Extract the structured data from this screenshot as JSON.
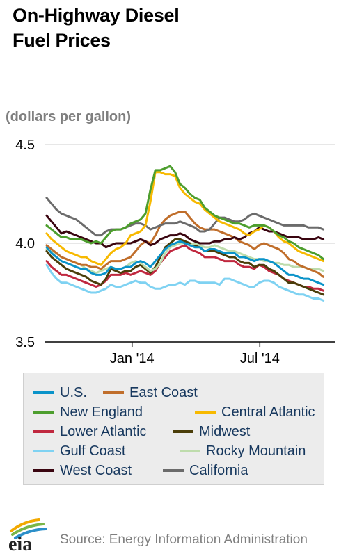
{
  "header": {
    "title_line1": "On-Highway Diesel",
    "title_line2": "Fuel Prices"
  },
  "chart_data": {
    "type": "line",
    "title": "On-Highway Diesel Fuel Prices",
    "ylabel": "(dollars per gallon)",
    "ylim": [
      3.5,
      4.5
    ],
    "yticks": [
      "4.5",
      "4.0",
      "3.5"
    ],
    "xticks": [
      "Jan '14",
      "Jul '14"
    ],
    "grid": "horizontal",
    "legend_position": "bottom",
    "x": [
      "2013-09-02",
      "2013-09-09",
      "2013-09-16",
      "2013-09-23",
      "2013-09-30",
      "2013-10-07",
      "2013-10-14",
      "2013-10-21",
      "2013-10-28",
      "2013-11-04",
      "2013-11-11",
      "2013-11-18",
      "2013-11-25",
      "2013-12-02",
      "2013-12-09",
      "2013-12-16",
      "2013-12-23",
      "2013-12-30",
      "2014-01-06",
      "2014-01-13",
      "2014-01-20",
      "2014-01-27",
      "2014-02-03",
      "2014-02-10",
      "2014-02-17",
      "2014-02-24",
      "2014-03-03",
      "2014-03-10",
      "2014-03-17",
      "2014-03-24",
      "2014-03-31",
      "2014-04-07",
      "2014-04-14",
      "2014-04-21",
      "2014-04-28",
      "2014-05-05",
      "2014-05-12",
      "2014-05-19",
      "2014-05-26",
      "2014-06-02",
      "2014-06-09",
      "2014-06-16",
      "2014-06-23",
      "2014-06-30",
      "2014-07-07",
      "2014-07-14",
      "2014-07-21",
      "2014-07-28",
      "2014-08-04",
      "2014-08-11",
      "2014-08-18",
      "2014-08-25",
      "2014-09-01",
      "2014-09-08",
      "2014-09-15",
      "2014-09-22",
      "2014-09-29"
    ],
    "series": [
      {
        "name": "U.S.",
        "color": "#0a93c9",
        "values": [
          3.98,
          3.95,
          3.93,
          3.91,
          3.9,
          3.89,
          3.88,
          3.87,
          3.87,
          3.85,
          3.84,
          3.84,
          3.85,
          3.88,
          3.87,
          3.87,
          3.88,
          3.88,
          3.9,
          3.91,
          3.9,
          3.88,
          3.91,
          3.94,
          3.97,
          3.99,
          4.0,
          4.01,
          4.0,
          3.99,
          3.98,
          3.98,
          3.96,
          3.97,
          3.97,
          3.96,
          3.95,
          3.95,
          3.95,
          3.93,
          3.93,
          3.92,
          3.91,
          3.92,
          3.92,
          3.91,
          3.9,
          3.88,
          3.86,
          3.84,
          3.84,
          3.83,
          3.82,
          3.82,
          3.81,
          3.8,
          3.79
        ]
      },
      {
        "name": "East Coast",
        "color": "#c06e2b",
        "values": [
          3.99,
          3.97,
          3.95,
          3.93,
          3.92,
          3.91,
          3.9,
          3.89,
          3.89,
          3.88,
          3.88,
          3.87,
          3.89,
          3.91,
          3.91,
          3.91,
          3.92,
          3.93,
          3.96,
          3.99,
          4.01,
          4.0,
          4.04,
          4.09,
          4.12,
          4.14,
          4.15,
          4.16,
          4.16,
          4.13,
          4.1,
          4.08,
          4.07,
          4.07,
          4.07,
          4.06,
          4.05,
          4.04,
          4.03,
          4.01,
          4.0,
          3.99,
          3.97,
          3.99,
          4.0,
          3.99,
          3.98,
          3.97,
          3.95,
          3.92,
          3.91,
          3.89,
          3.88,
          3.87,
          3.86,
          3.85,
          3.83
        ]
      },
      {
        "name": "New England",
        "color": "#4d9e2e",
        "values": [
          4.09,
          4.07,
          4.05,
          4.03,
          4.03,
          4.02,
          4.02,
          4.02,
          4.01,
          4.0,
          4.01,
          4.0,
          4.03,
          4.06,
          4.07,
          4.07,
          4.08,
          4.1,
          4.11,
          4.12,
          4.15,
          4.27,
          4.37,
          4.37,
          4.38,
          4.39,
          4.36,
          4.3,
          4.28,
          4.25,
          4.23,
          4.22,
          4.18,
          4.16,
          4.14,
          4.13,
          4.12,
          4.11,
          4.1,
          4.1,
          4.09,
          4.08,
          4.09,
          4.09,
          4.09,
          4.08,
          4.06,
          4.04,
          4.03,
          4.01,
          4.0,
          3.98,
          3.97,
          3.96,
          3.95,
          3.94,
          3.92
        ]
      },
      {
        "name": "Central Atlantic",
        "color": "#f7b900",
        "values": [
          4.05,
          4.02,
          4.0,
          3.98,
          3.96,
          3.95,
          3.94,
          3.93,
          3.93,
          3.91,
          3.9,
          3.89,
          3.92,
          3.95,
          3.97,
          3.98,
          4.0,
          4.04,
          4.05,
          4.06,
          4.09,
          4.21,
          4.36,
          4.36,
          4.35,
          4.35,
          4.34,
          4.28,
          4.25,
          4.23,
          4.21,
          4.2,
          4.17,
          4.15,
          4.13,
          4.11,
          4.1,
          4.09,
          4.08,
          4.07,
          4.05,
          4.04,
          4.06,
          4.07,
          4.09,
          4.08,
          4.06,
          4.03,
          4.01,
          4.0,
          3.98,
          3.96,
          3.95,
          3.94,
          3.93,
          3.92,
          3.91
        ]
      },
      {
        "name": "Lower Atlantic",
        "color": "#c0283f",
        "values": [
          3.91,
          3.88,
          3.86,
          3.84,
          3.84,
          3.83,
          3.82,
          3.81,
          3.8,
          3.79,
          3.78,
          3.79,
          3.81,
          3.84,
          3.84,
          3.84,
          3.85,
          3.84,
          3.85,
          3.86,
          3.85,
          3.84,
          3.86,
          3.9,
          3.93,
          3.96,
          3.97,
          3.98,
          3.99,
          3.97,
          3.96,
          3.95,
          3.93,
          3.93,
          3.93,
          3.92,
          3.91,
          3.91,
          3.91,
          3.89,
          3.88,
          3.88,
          3.87,
          3.89,
          3.88,
          3.86,
          3.85,
          3.84,
          3.82,
          3.81,
          3.8,
          3.79,
          3.78,
          3.78,
          3.77,
          3.77,
          3.76
        ]
      },
      {
        "name": "Midwest",
        "color": "#4b3e0a",
        "values": [
          3.96,
          3.93,
          3.91,
          3.89,
          3.87,
          3.86,
          3.85,
          3.84,
          3.83,
          3.81,
          3.8,
          3.79,
          3.82,
          3.87,
          3.86,
          3.85,
          3.86,
          3.86,
          3.88,
          3.89,
          3.87,
          3.85,
          3.88,
          3.93,
          3.98,
          4.0,
          4.02,
          4.02,
          4.01,
          4.0,
          3.99,
          3.98,
          3.96,
          3.96,
          3.96,
          3.95,
          3.94,
          3.93,
          3.93,
          3.91,
          3.9,
          3.9,
          3.88,
          3.89,
          3.89,
          3.87,
          3.86,
          3.84,
          3.82,
          3.8,
          3.8,
          3.79,
          3.78,
          3.77,
          3.76,
          3.75,
          3.74
        ]
      },
      {
        "name": "Gulf Coast",
        "color": "#7fd2f2",
        "values": [
          3.89,
          3.85,
          3.82,
          3.8,
          3.8,
          3.79,
          3.78,
          3.77,
          3.76,
          3.75,
          3.75,
          3.76,
          3.77,
          3.79,
          3.78,
          3.78,
          3.79,
          3.8,
          3.81,
          3.8,
          3.8,
          3.78,
          3.77,
          3.77,
          3.78,
          3.79,
          3.79,
          3.8,
          3.79,
          3.81,
          3.81,
          3.8,
          3.8,
          3.8,
          3.8,
          3.79,
          3.82,
          3.82,
          3.81,
          3.8,
          3.79,
          3.78,
          3.78,
          3.8,
          3.81,
          3.81,
          3.8,
          3.78,
          3.77,
          3.76,
          3.75,
          3.74,
          3.74,
          3.73,
          3.72,
          3.72,
          3.71
        ]
      },
      {
        "name": "Rocky Mountain",
        "color": "#bedcac",
        "values": [
          3.97,
          3.96,
          3.95,
          3.93,
          3.92,
          3.91,
          3.9,
          3.89,
          3.87,
          3.86,
          3.85,
          3.86,
          3.87,
          3.88,
          3.87,
          3.87,
          3.88,
          3.9,
          3.91,
          3.9,
          3.88,
          3.86,
          3.87,
          3.9,
          3.95,
          3.98,
          3.99,
          4.0,
          4.0,
          3.99,
          4.0,
          3.99,
          3.98,
          3.98,
          3.99,
          3.98,
          3.97,
          3.96,
          3.96,
          3.95,
          3.94,
          3.93,
          3.92,
          3.92,
          3.91,
          3.91,
          3.9,
          3.9,
          3.89,
          3.89,
          3.88,
          3.88,
          3.88,
          3.87,
          3.87,
          3.87,
          3.86
        ]
      },
      {
        "name": "West Coast",
        "color": "#3a0510",
        "values": [
          4.14,
          4.11,
          4.08,
          4.05,
          4.06,
          4.05,
          4.04,
          4.03,
          4.02,
          4.01,
          4.0,
          4.0,
          3.98,
          3.99,
          4.0,
          4.0,
          4.0,
          4.0,
          4.01,
          4.02,
          4.01,
          3.99,
          4.0,
          4.02,
          4.03,
          4.04,
          4.04,
          4.05,
          4.04,
          4.02,
          4.01,
          4.0,
          4.0,
          4.0,
          4.01,
          4.01,
          4.02,
          4.02,
          4.03,
          4.02,
          4.03,
          4.05,
          4.06,
          4.08,
          4.07,
          4.06,
          4.06,
          4.05,
          4.04,
          4.03,
          4.03,
          4.03,
          4.02,
          4.02,
          4.02,
          4.03,
          4.02
        ]
      },
      {
        "name": "California",
        "color": "#6b6b6b",
        "values": [
          4.23,
          4.2,
          4.17,
          4.15,
          4.14,
          4.13,
          4.12,
          4.1,
          4.08,
          4.06,
          4.04,
          4.04,
          4.06,
          4.07,
          4.07,
          4.07,
          4.08,
          4.09,
          4.1,
          4.1,
          4.09,
          4.07,
          4.08,
          4.09,
          4.1,
          4.1,
          4.1,
          4.11,
          4.1,
          4.09,
          4.08,
          4.06,
          4.06,
          4.07,
          4.1,
          4.13,
          4.13,
          4.12,
          4.11,
          4.11,
          4.12,
          4.14,
          4.15,
          4.14,
          4.13,
          4.12,
          4.11,
          4.1,
          4.09,
          4.09,
          4.09,
          4.09,
          4.09,
          4.08,
          4.08,
          4.08,
          4.07
        ]
      }
    ]
  },
  "legend_layout": [
    [
      0,
      1
    ],
    [
      2,
      3
    ],
    [
      4,
      5
    ],
    [
      6,
      7
    ],
    [
      8,
      9
    ]
  ],
  "footer": {
    "logo_text": "eia",
    "source": "Source: Energy Information Administration"
  }
}
